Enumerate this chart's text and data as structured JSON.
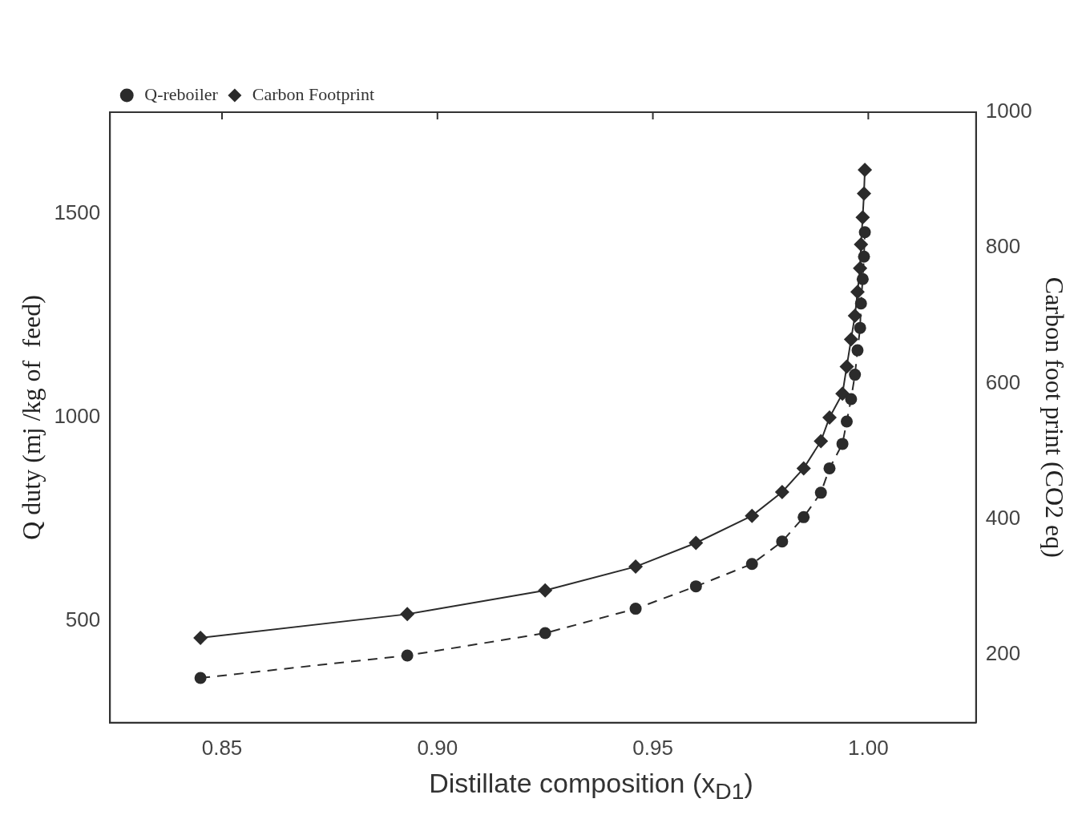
{
  "chart_data": {
    "type": "line",
    "xlabel": "Distillate composition (x$_{D1}$)",
    "ylabel": "Q duty (mj /kg of  feed)",
    "y2label": "Carbon foot print (CO2 eq)",
    "x": [
      0.845,
      0.893,
      0.925,
      0.946,
      0.96,
      0.973,
      0.98,
      0.985,
      0.989,
      0.991,
      0.994,
      0.995,
      0.996,
      0.9969,
      0.9975,
      0.9981,
      0.9983,
      0.9987,
      0.999,
      0.9992
    ],
    "series": [
      {
        "name": "Q-reboiler",
        "color": "#2b2b2b",
        "marker": "circle",
        "line_style": "dashed",
        "values": [
          360,
          415,
          470,
          530,
          585,
          640,
          695,
          755,
          815,
          875,
          935,
          990,
          1045,
          1105,
          1165,
          1220,
          1280,
          1340,
          1395,
          1455
        ]
      },
      {
        "name": "Carbon Footprint",
        "color": "#2b2b2b",
        "marker": "diamond",
        "line_style": "solid",
        "axis": "y2",
        "values": [
          225,
          260,
          295,
          330,
          365,
          405,
          440,
          475,
          515,
          550,
          585,
          625,
          665,
          700,
          735,
          770,
          805,
          845,
          880,
          915
        ]
      }
    ],
    "xlim": [
      0.824,
      1.025
    ],
    "xticks": [
      {
        "value": 0.85,
        "label": "0.85"
      },
      {
        "value": 0.9,
        "label": "0.90"
      },
      {
        "value": 0.95,
        "label": "0.95"
      },
      {
        "value": 1,
        "label": "1.00"
      }
    ],
    "ylim": [
      250,
      1750
    ],
    "yticks": [
      500,
      1000,
      1500
    ],
    "y2lim": [
      100,
      1000
    ],
    "y2ticks": [
      200,
      400,
      600,
      800,
      1000
    ],
    "grid": false,
    "legend": "top left"
  }
}
